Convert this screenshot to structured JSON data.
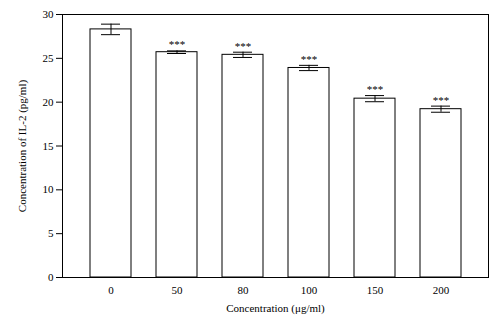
{
  "chart_data": {
    "type": "bar",
    "x_label": "Concentration (μg/ml)",
    "y_label": "Concentration of IL-2 (pg/ml)",
    "categories": [
      "0",
      "50",
      "80",
      "100",
      "150",
      "200"
    ],
    "values": [
      28.3,
      25.7,
      25.4,
      23.9,
      20.4,
      19.2
    ],
    "errors": [
      0.6,
      0.15,
      0.3,
      0.3,
      0.35,
      0.35
    ],
    "significance": [
      null,
      "***",
      "***",
      "***",
      "***",
      "***"
    ],
    "color": "#ffffff",
    "ylim": [
      0,
      30
    ],
    "yticks": [
      0,
      5,
      10,
      15,
      20,
      25,
      30
    ],
    "grid": false
  }
}
